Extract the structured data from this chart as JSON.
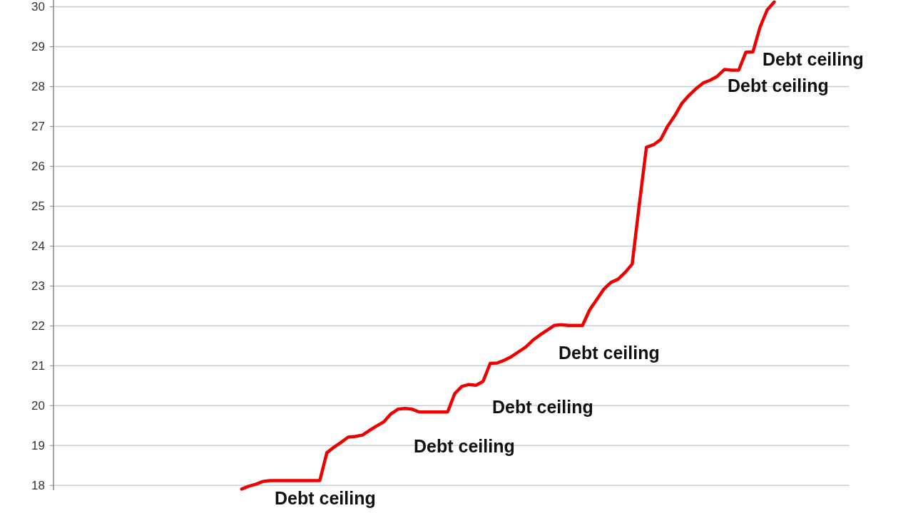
{
  "chart_data": {
    "type": "step",
    "categories": [
      null,
      null,
      null,
      null,
      null,
      null,
      null,
      null,
      null,
      null,
      null,
      null,
      null,
      null,
      null,
      null,
      null,
      null,
      null,
      null,
      null,
      null,
      null,
      null,
      null,
      null,
      null,
      null,
      null,
      null,
      null,
      null,
      null,
      null,
      null,
      null,
      null,
      null,
      null,
      null,
      null,
      null,
      null,
      null,
      null,
      null,
      null,
      null,
      null,
      null,
      null,
      null,
      null,
      null,
      null,
      null,
      null,
      null,
      null,
      null,
      null,
      null,
      null,
      null,
      null,
      null,
      null,
      null,
      null,
      null,
      null,
      null,
      null,
      null,
      null,
      null,
      null,
      null,
      null,
      null,
      null,
      null,
      null,
      null,
      null,
      null,
      null,
      null,
      null,
      null,
      null,
      null,
      null,
      null,
      null,
      null,
      null,
      null,
      null,
      null,
      null,
      null,
      null,
      null,
      null,
      null,
      null,
      null,
      null,
      null,
      null,
      null
    ],
    "series": [
      {
        "color": "#ee0000",
        "values": [
          null,
          null,
          null,
          null,
          null,
          null,
          null,
          null,
          null,
          null,
          null,
          null,
          null,
          null,
          null,
          null,
          null,
          null,
          null,
          null,
          null,
          null,
          null,
          null,
          null,
          null,
          17.91,
          17.98,
          18.03,
          18.1,
          18.12,
          18.12,
          18.12,
          18.12,
          18.12,
          18.12,
          18.12,
          18.12,
          18.82,
          18.96,
          19.08,
          19.21,
          19.23,
          19.26,
          19.38,
          19.49,
          19.59,
          19.79,
          19.91,
          19.93,
          19.91,
          19.84,
          19.84,
          19.84,
          19.84,
          19.84,
          20.3,
          20.48,
          20.53,
          20.51,
          20.61,
          21.06,
          21.07,
          21.14,
          21.23,
          21.35,
          21.47,
          21.64,
          21.77,
          21.89,
          22.01,
          22.03,
          22.01,
          22.01,
          22.01,
          22.4,
          22.66,
          22.92,
          23.09,
          23.17,
          23.34,
          23.55,
          25.05,
          26.48,
          26.54,
          26.67,
          27.01,
          27.27,
          27.58,
          27.78,
          27.95,
          28.09,
          28.16,
          28.26,
          28.43,
          28.41,
          28.41,
          28.86,
          28.87,
          29.49,
          29.92,
          30.12,
          null,
          null,
          null,
          null,
          null,
          null,
          null,
          null,
          null,
          null
        ]
      }
    ],
    "ylim": [
      17.88,
      30.17
    ],
    "yticks": [
      18,
      19,
      20,
      21,
      22,
      23,
      24,
      25,
      26,
      27,
      28,
      29,
      30
    ],
    "grid": "y",
    "marker": "none",
    "line_style": "solid",
    "annotations": [
      "Debt ceiling",
      "Debt ceiling",
      "Debt ceiling",
      "Debt ceiling",
      "Debt ceiling",
      "Debt ceiling"
    ]
  }
}
